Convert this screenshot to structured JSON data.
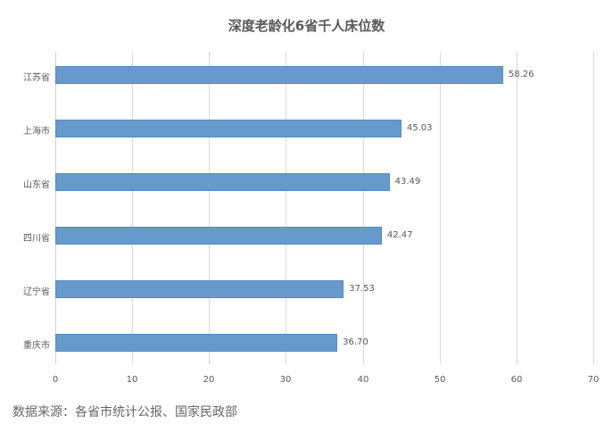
{
  "chart_data": {
    "type": "bar",
    "orientation": "horizontal",
    "title": "深度老龄化6省千人床位数",
    "categories": [
      "江苏省",
      "上海市",
      "山东省",
      "四川省",
      "辽宁省",
      "重庆市"
    ],
    "values": [
      58.26,
      45.03,
      43.49,
      42.47,
      37.53,
      36.7
    ],
    "value_labels": [
      "58.26",
      "45.03",
      "43.49",
      "42.47",
      "37.53",
      "36.70"
    ],
    "xlabel": "",
    "ylabel": "",
    "xlim": [
      0,
      70
    ],
    "xticks": [
      "0",
      "10",
      "20",
      "30",
      "40",
      "50",
      "60",
      "70"
    ],
    "grid": true,
    "legend": null,
    "bar_color": "#6699cc"
  },
  "footer": {
    "source": "数据来源：各省市统计公报、国家民政部"
  }
}
